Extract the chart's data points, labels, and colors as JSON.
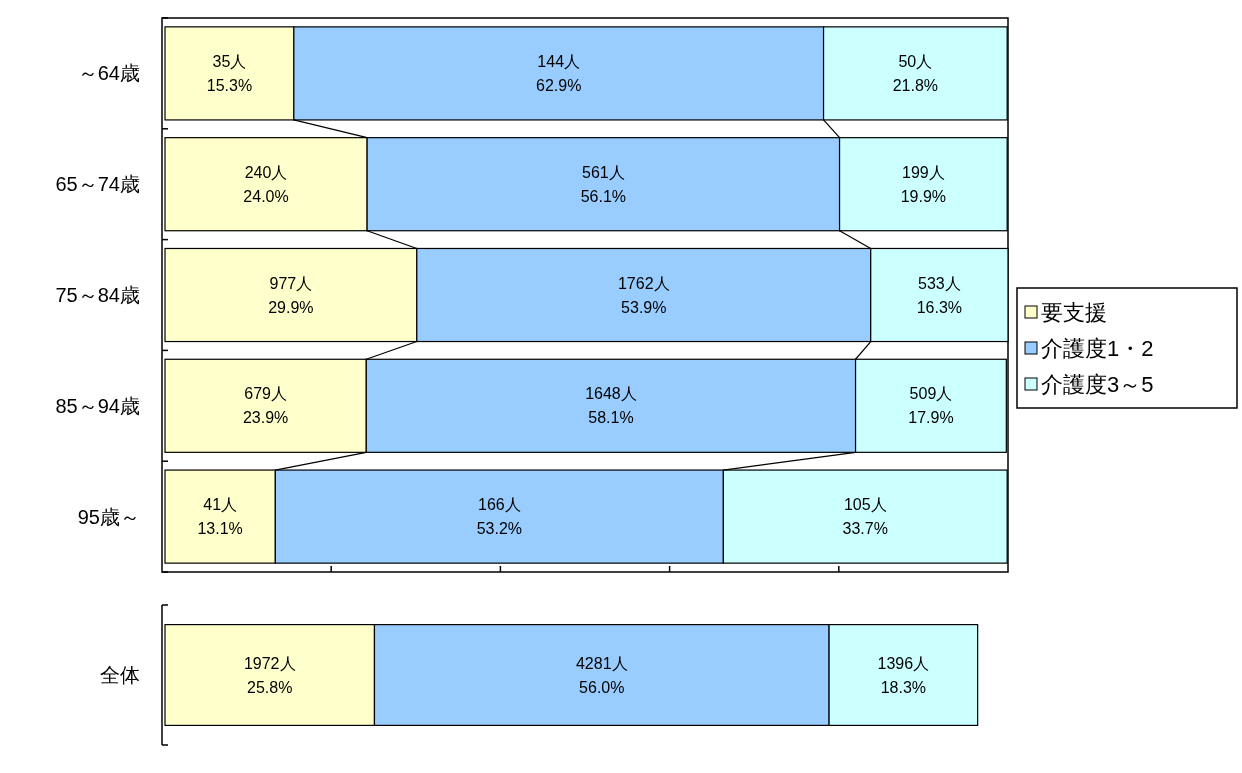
{
  "chart_data": [
    {
      "type": "bar",
      "orientation": "horizontal",
      "stacked": true,
      "legend": "right",
      "categories": [
        "～64歳",
        "65～74歳",
        "75～84歳",
        "85～94歳",
        "95歳～"
      ],
      "series": [
        {
          "name": "要支援",
          "color": "#ffffcc",
          "values": [
            15.3,
            24.0,
            29.9,
            23.9,
            13.1
          ],
          "value_labels": [
            "35人\n15.3%",
            "240人\n24.0%",
            "977人\n29.9%",
            "679人\n23.9%",
            "41人\n13.1%"
          ]
        },
        {
          "name": "介護度1・2",
          "color": "#99ccff",
          "values": [
            62.9,
            56.1,
            53.9,
            58.1,
            53.2
          ],
          "value_labels": [
            "144人\n62.9%",
            "561人\n56.1%",
            "1762人\n53.9%",
            "1648人\n58.1%",
            "166人\n53.2%"
          ]
        },
        {
          "name": "介護度3～5",
          "color": "#ccffff",
          "values": [
            21.8,
            19.9,
            16.3,
            17.9,
            33.7
          ],
          "value_labels": [
            "50人\n21.8%",
            "199人\n19.9%",
            "533人\n16.3%",
            "509人\n17.9%",
            "105人\n33.7%"
          ]
        }
      ]
    },
    {
      "type": "bar",
      "orientation": "horizontal",
      "stacked": true,
      "categories": [
        "全体"
      ],
      "series": [
        {
          "color": "#ffffcc",
          "values": [
            25.8
          ],
          "value_labels": [
            "1972人\n25.8%"
          ]
        },
        {
          "color": "#99ccff",
          "values": [
            56.0
          ],
          "value_labels": [
            "4281人\n56.0%"
          ]
        },
        {
          "color": "#ccffff",
          "values": [
            18.3
          ],
          "value_labels": [
            "1396人\n18.3%"
          ]
        }
      ]
    }
  ]
}
